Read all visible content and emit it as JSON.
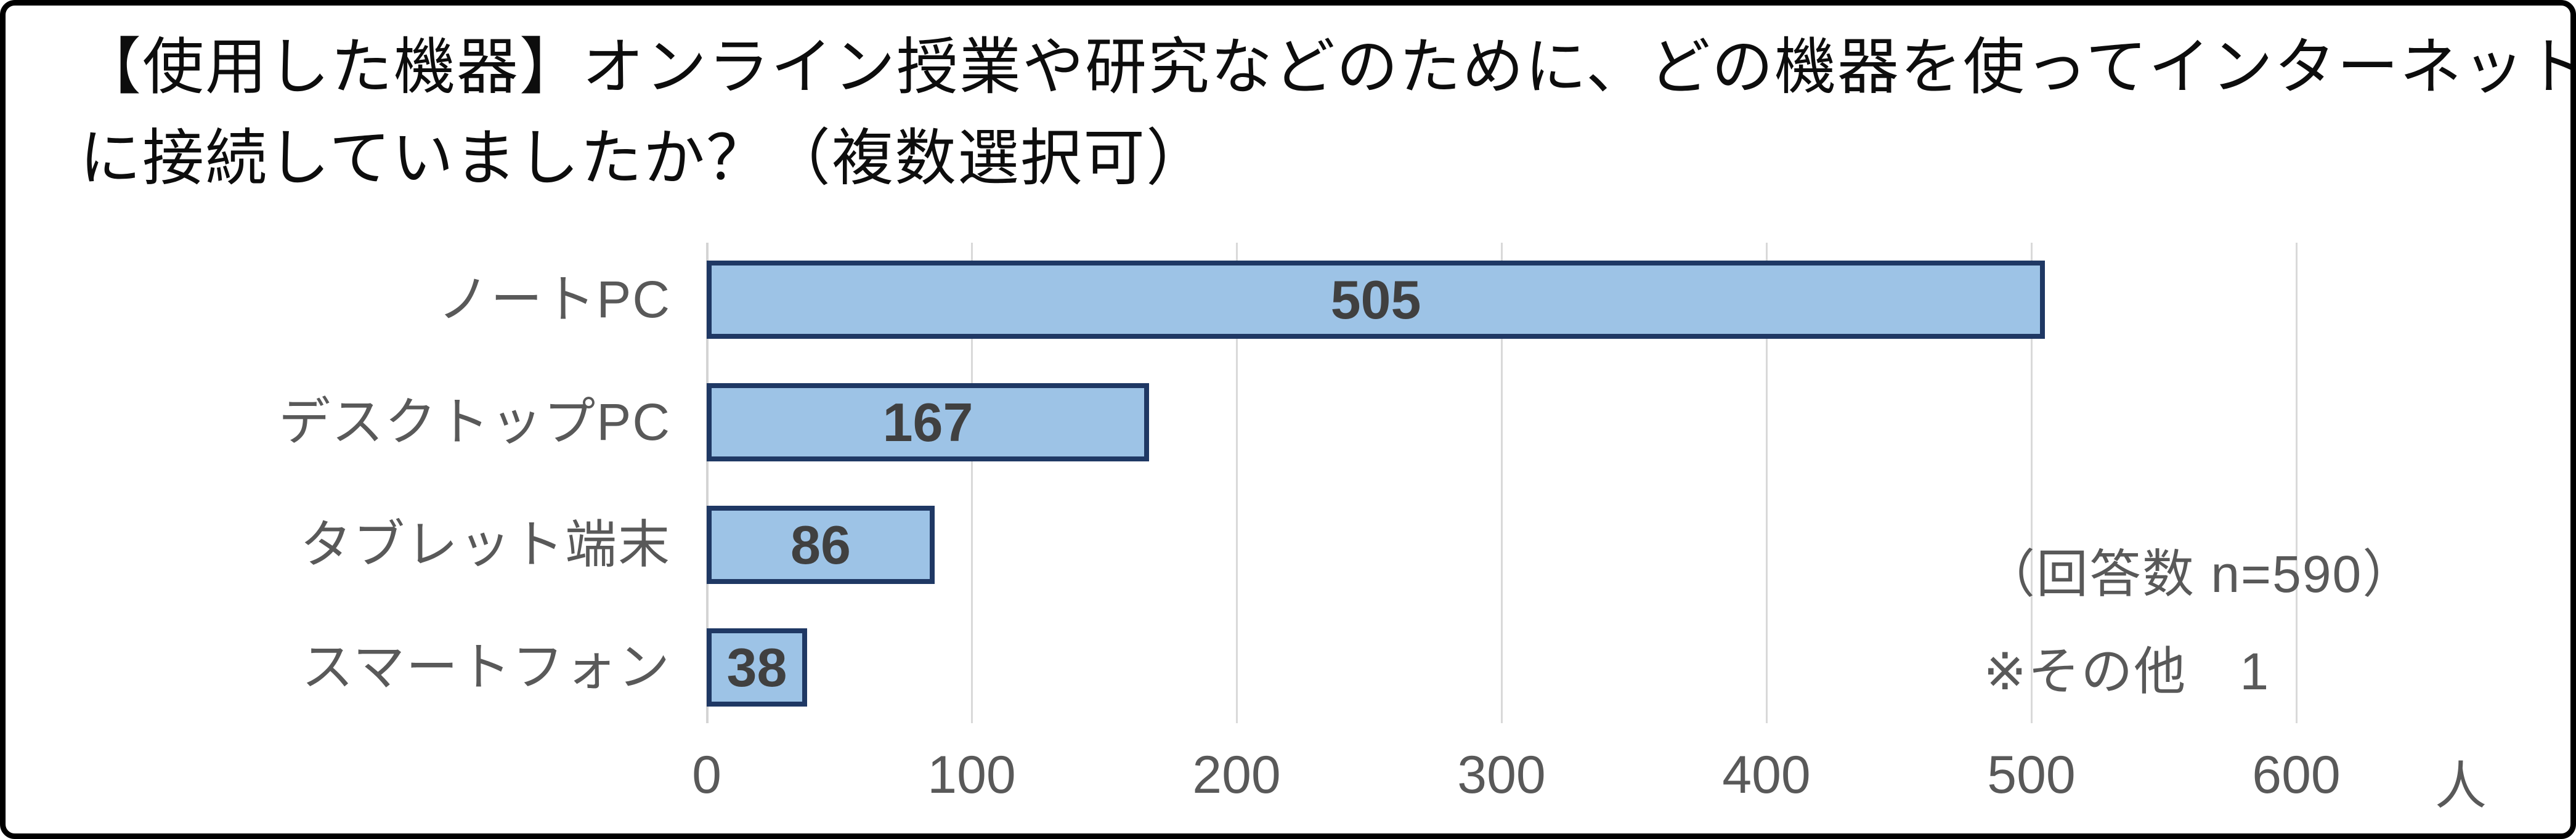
{
  "title": {
    "line1": "【使用した機器】オンライン授業や研究などのために、どの機器を使ってインターネット",
    "line2": "に接続していましたか？（複数選択可）"
  },
  "annotation": {
    "line1": "（回答数 n=590）",
    "line2": "※その他　1"
  },
  "chart_data": {
    "type": "bar",
    "orientation": "horizontal",
    "title": "【使用した機器】オンライン授業や研究などのために、どの機器を使ってインターネットに接続していましたか？（複数選択可）",
    "categories": [
      "ノートPC",
      "デスクトップPC",
      "タブレット端末",
      "スマートフォン"
    ],
    "values": [
      505,
      167,
      86,
      38
    ],
    "data_labels": [
      "505",
      "167",
      "86",
      "38"
    ],
    "xlim": [
      0,
      600
    ],
    "x_ticks": [
      0,
      100,
      200,
      300,
      400,
      500,
      600
    ],
    "x_tick_labels": [
      "0",
      "100",
      "200",
      "300",
      "400",
      "500",
      "600"
    ],
    "x_unit": "人",
    "grid": true,
    "legend": "none",
    "notes": [
      "（回答数 n=590）",
      "※その他　1"
    ],
    "colors": {
      "bar_fill": "#9DC3E6",
      "bar_border": "#1F3864",
      "gridline": "#D9D9D9",
      "tick_text": "#595959",
      "category_text": "#595959",
      "data_label_text": "#404040",
      "title_text": "#0D0D0D",
      "frame_border": "#000000",
      "background": "#FFFFFF"
    }
  }
}
